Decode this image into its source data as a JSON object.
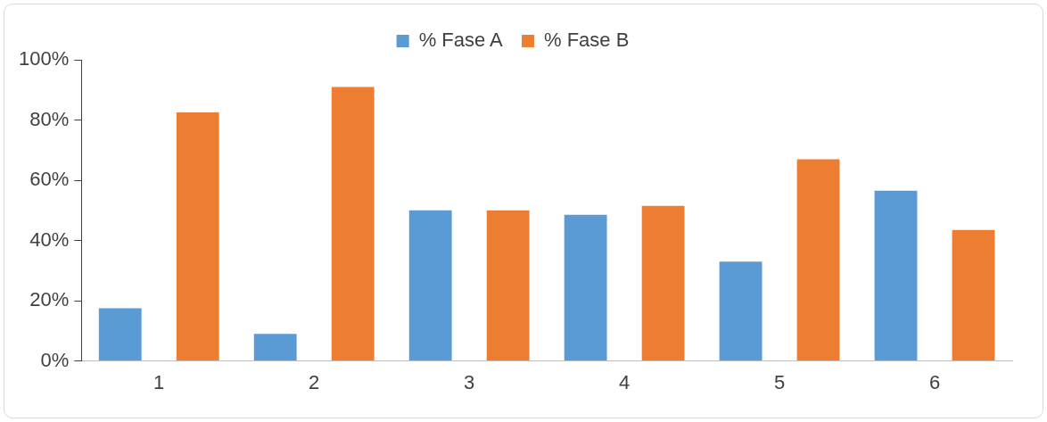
{
  "chart_data": {
    "type": "bar",
    "categories": [
      "1",
      "2",
      "3",
      "4",
      "5",
      "6"
    ],
    "series": [
      {
        "name": "% Fase A",
        "color": "#5b9bd5",
        "values": [
          17.5,
          9,
          50,
          48.5,
          33,
          56.5
        ]
      },
      {
        "name": "% Fase B",
        "color": "#ed7d31",
        "values": [
          82.5,
          91,
          50,
          51.5,
          67,
          43.5
        ]
      }
    ],
    "ylim": [
      0,
      100
    ],
    "yticks": [
      {
        "value": 0,
        "label": "0%"
      },
      {
        "value": 20,
        "label": "20%"
      },
      {
        "value": 40,
        "label": "40%"
      },
      {
        "value": 60,
        "label": "60%"
      },
      {
        "value": 80,
        "label": "80%"
      },
      {
        "value": 100,
        "label": "100%"
      }
    ],
    "grid": false,
    "legend": "top"
  }
}
